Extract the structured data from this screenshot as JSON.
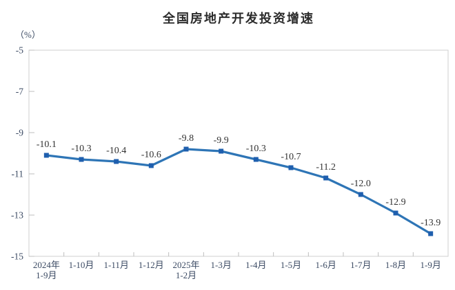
{
  "title": "全国房地产开发投资增速",
  "unit_label": "（%）",
  "chart_data": {
    "type": "line",
    "title": "全国房地产开发投资增速",
    "ylabel": "（%）",
    "xlabel": "",
    "categories": [
      [
        "2024年",
        "1-9月"
      ],
      [
        "1-10月"
      ],
      [
        "1-11月"
      ],
      [
        "1-12月"
      ],
      [
        "2025年",
        "1-2月"
      ],
      [
        "1-3月"
      ],
      [
        "1-4月"
      ],
      [
        "1-5月"
      ],
      [
        "1-6月"
      ],
      [
        "1-7月"
      ],
      [
        "1-8月"
      ],
      [
        "1-9月"
      ]
    ],
    "values": [
      -10.1,
      -10.3,
      -10.4,
      -10.6,
      -9.8,
      -9.9,
      -10.3,
      -10.7,
      -11.2,
      -12.0,
      -12.9,
      -13.9
    ],
    "labels": [
      "-10.1",
      "-10.3",
      "-10.4",
      "-10.6",
      "-9.8",
      "-9.9",
      "-10.3",
      "-10.7",
      "-11.2",
      "-12.0",
      "-12.9",
      "-13.9"
    ],
    "ylim": [
      -15,
      -5
    ],
    "yticks": [
      -5,
      -7,
      -9,
      -11,
      -13,
      -15
    ],
    "grid": false,
    "legend": "none",
    "colors": {
      "line": "#2e75b6",
      "marker": "#1f5fae",
      "axis_text": "#3b4a63",
      "data_label": "#333333",
      "border": "#cfcfcf",
      "tick": "#bdbdbd",
      "title": "#2b2b2b"
    }
  }
}
